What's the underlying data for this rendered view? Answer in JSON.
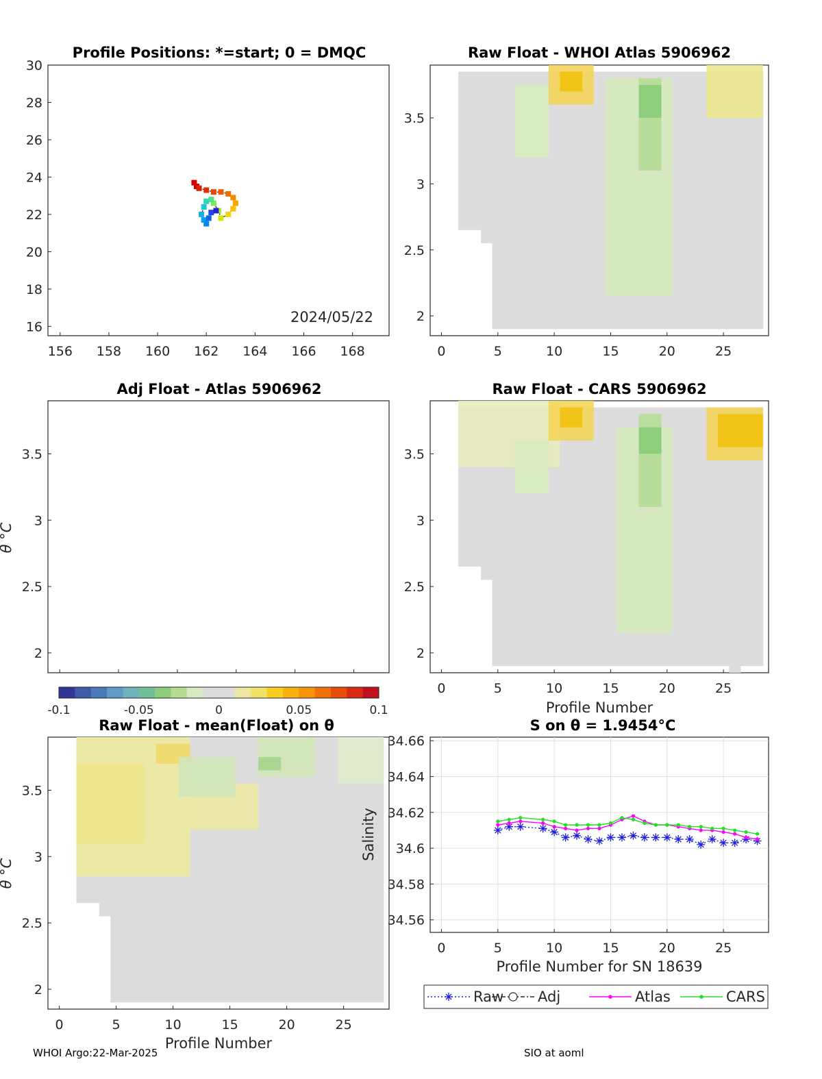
{
  "footer": {
    "left": "WHOI Argo:22-Mar-2025",
    "right": "SIO at aoml"
  },
  "colorbar": {
    "ticks": [
      "-0.1",
      "-0.05",
      "0",
      "0.05",
      "0.1"
    ],
    "colors": [
      "#313695",
      "#3f5aa6",
      "#4a7bb7",
      "#5f9bc4",
      "#6fb2bc",
      "#6fbf99",
      "#8ccc7a",
      "#b4dd8f",
      "#d6e9c1",
      "#dcdcdc",
      "#dcdcdc",
      "#ece8a3",
      "#f2e267",
      "#f6cf22",
      "#f7b20e",
      "#f59406",
      "#f07108",
      "#e64c0c",
      "#d62a12",
      "#c0101e"
    ]
  },
  "chart_data": [
    {
      "id": "positions",
      "type": "scatter",
      "title": "Profile Positions: *=start; 0 = DMQC",
      "xlim": [
        155.5,
        169.5
      ],
      "ylim": [
        15.5,
        30
      ],
      "xticks": [
        156,
        158,
        160,
        162,
        164,
        166,
        168
      ],
      "yticks": [
        16,
        18,
        20,
        22,
        24,
        26,
        28,
        30
      ],
      "annotation": "2024/05/22",
      "points": [
        {
          "lon": 161.5,
          "lat": 23.7,
          "color": "#d40000"
        },
        {
          "lon": 161.6,
          "lat": 23.5,
          "color": "#d40000"
        },
        {
          "lon": 161.7,
          "lat": 23.4,
          "color": "#dc1e00"
        },
        {
          "lon": 162.0,
          "lat": 23.3,
          "color": "#e03200"
        },
        {
          "lon": 162.3,
          "lat": 23.2,
          "color": "#e54800"
        },
        {
          "lon": 162.6,
          "lat": 23.2,
          "color": "#ea5a00"
        },
        {
          "lon": 162.9,
          "lat": 23.1,
          "color": "#ef7000"
        },
        {
          "lon": 163.1,
          "lat": 22.9,
          "color": "#f58a00"
        },
        {
          "lon": 163.2,
          "lat": 22.6,
          "color": "#f9a400"
        },
        {
          "lon": 163.1,
          "lat": 22.3,
          "color": "#fcc000"
        },
        {
          "lon": 162.9,
          "lat": 22.0,
          "color": "#f2d600"
        },
        {
          "lon": 162.6,
          "lat": 21.8,
          "color": "#d8e400"
        },
        {
          "lon": 162.5,
          "lat": 22.2,
          "color": "#b4ea1a"
        },
        {
          "lon": 162.3,
          "lat": 22.6,
          "color": "#7ee850"
        },
        {
          "lon": 162.2,
          "lat": 22.8,
          "color": "#50e08a"
        },
        {
          "lon": 162.0,
          "lat": 22.7,
          "color": "#2cd8b8"
        },
        {
          "lon": 161.9,
          "lat": 22.4,
          "color": "#1cc8d6"
        },
        {
          "lon": 161.8,
          "lat": 22.0,
          "color": "#10b2e6"
        },
        {
          "lon": 161.9,
          "lat": 21.7,
          "color": "#0a9ce8"
        },
        {
          "lon": 162.0,
          "lat": 21.5,
          "color": "#0a88ea"
        },
        {
          "lon": 162.1,
          "lat": 21.8,
          "color": "#1066ea"
        },
        {
          "lon": 162.2,
          "lat": 22.1,
          "color": "#2244e0"
        },
        {
          "lon": 162.4,
          "lat": 22.2,
          "color": "#2222d0"
        }
      ]
    },
    {
      "id": "atlas",
      "type": "heatmap",
      "title": "Raw Float - WHOI Atlas  5906962",
      "xlim": [
        -1,
        29
      ],
      "ylim": [
        1.85,
        3.9
      ],
      "xticks": [
        0,
        5,
        10,
        15,
        20,
        25
      ],
      "yticks": [
        2,
        2.5,
        3,
        3.5
      ],
      "columns": [
        {
          "p": 2,
          "bot": 2.65
        },
        {
          "p": 3,
          "bot": 2.65
        },
        {
          "p": 4,
          "bot": 2.55
        },
        {
          "p": 5,
          "bot": 1.9
        },
        {
          "p": 6,
          "bot": 1.9
        },
        {
          "p": 7,
          "bot": 1.9
        },
        {
          "p": 8,
          "bot": 1.9
        },
        {
          "p": 9,
          "bot": 1.9
        },
        {
          "p": 10,
          "bot": 1.9
        },
        {
          "p": 11,
          "bot": 1.9
        },
        {
          "p": 12,
          "bot": 1.9
        },
        {
          "p": 13,
          "bot": 1.9
        },
        {
          "p": 14,
          "bot": 1.9
        },
        {
          "p": 15,
          "bot": 1.9
        },
        {
          "p": 16,
          "bot": 1.9
        },
        {
          "p": 17,
          "bot": 1.9
        },
        {
          "p": 18,
          "bot": 1.9
        },
        {
          "p": 19,
          "bot": 1.9
        },
        {
          "p": 20,
          "bot": 1.9
        },
        {
          "p": 21,
          "bot": 1.9
        },
        {
          "p": 22,
          "bot": 1.9
        },
        {
          "p": 23,
          "bot": 1.9
        },
        {
          "p": 24,
          "bot": 1.9
        },
        {
          "p": 25,
          "bot": 1.9
        },
        {
          "p": 26,
          "bot": 1.9
        },
        {
          "p": 27,
          "bot": 1.9
        },
        {
          "p": 28,
          "bot": 1.9
        }
      ],
      "top": 3.85,
      "warm_patches": [
        {
          "p0": 10,
          "p1": 13,
          "th0": 3.6,
          "th1": 3.9,
          "color": "#f3d55a"
        },
        {
          "p0": 11,
          "p1": 12,
          "th0": 3.7,
          "th1": 3.85,
          "color": "#f1c20e"
        },
        {
          "p0": 24,
          "p1": 28,
          "th0": 3.5,
          "th1": 3.9,
          "color": "#ece68e"
        }
      ],
      "cool_patches": [
        {
          "p0": 15,
          "p1": 20,
          "th0": 2.15,
          "th1": 3.8,
          "color": "#d5e8bd"
        },
        {
          "p0": 18,
          "p1": 19,
          "th0": 3.1,
          "th1": 3.8,
          "color": "#b7dd9a"
        },
        {
          "p0": 18,
          "p1": 19,
          "th0": 3.5,
          "th1": 3.75,
          "color": "#8ccc7a"
        },
        {
          "p0": 7,
          "p1": 9,
          "th0": 3.2,
          "th1": 3.75,
          "color": "#d8ebbf"
        }
      ]
    },
    {
      "id": "adj_atlas",
      "type": "heatmap",
      "title": "Adj Float - Atlas  5906962",
      "ylabel": "θ °C",
      "xlim": [
        -1,
        28
      ],
      "ylim": [
        1.85,
        3.9
      ],
      "yticks": [
        2,
        2.5,
        3,
        3.5
      ],
      "columns": []
    },
    {
      "id": "cars",
      "type": "heatmap",
      "title": "Raw Float - CARS  5906962",
      "xlabel": "Profile Number",
      "xlim": [
        -1,
        29
      ],
      "ylim": [
        1.85,
        3.9
      ],
      "xticks": [
        0,
        5,
        10,
        15,
        20,
        25
      ],
      "yticks": [
        2,
        2.5,
        3,
        3.5
      ],
      "columns": [
        {
          "p": 2,
          "bot": 2.65
        },
        {
          "p": 3,
          "bot": 2.65
        },
        {
          "p": 4,
          "bot": 2.55
        },
        {
          "p": 5,
          "bot": 1.9
        },
        {
          "p": 6,
          "bot": 1.9
        },
        {
          "p": 7,
          "bot": 1.9
        },
        {
          "p": 8,
          "bot": 1.9
        },
        {
          "p": 9,
          "bot": 1.9
        },
        {
          "p": 10,
          "bot": 1.9
        },
        {
          "p": 11,
          "bot": 1.9
        },
        {
          "p": 12,
          "bot": 1.9
        },
        {
          "p": 13,
          "bot": 1.9
        },
        {
          "p": 14,
          "bot": 1.9
        },
        {
          "p": 15,
          "bot": 1.9
        },
        {
          "p": 16,
          "bot": 1.9
        },
        {
          "p": 17,
          "bot": 1.9
        },
        {
          "p": 18,
          "bot": 1.9
        },
        {
          "p": 19,
          "bot": 1.9
        },
        {
          "p": 20,
          "bot": 1.9
        },
        {
          "p": 21,
          "bot": 1.9
        },
        {
          "p": 22,
          "bot": 1.9
        },
        {
          "p": 23,
          "bot": 1.9
        },
        {
          "p": 24,
          "bot": 1.9
        },
        {
          "p": 25,
          "bot": 1.9
        },
        {
          "p": 26,
          "bot": 1.85
        },
        {
          "p": 27,
          "bot": 1.9
        },
        {
          "p": 28,
          "bot": 1.9
        }
      ],
      "top": 3.85,
      "warm_patches": [
        {
          "p0": 2,
          "p1": 10,
          "th0": 3.4,
          "th1": 3.9,
          "color": "#e9ecbe"
        },
        {
          "p0": 10,
          "p1": 13,
          "th0": 3.6,
          "th1": 3.9,
          "color": "#f3d55a"
        },
        {
          "p0": 11,
          "p1": 12,
          "th0": 3.7,
          "th1": 3.85,
          "color": "#f1c20e"
        },
        {
          "p0": 24,
          "p1": 28,
          "th0": 3.45,
          "th1": 3.85,
          "color": "#f3d55a"
        },
        {
          "p0": 25,
          "p1": 28,
          "th0": 3.55,
          "th1": 3.8,
          "color": "#f1c20e"
        }
      ],
      "cool_patches": [
        {
          "p0": 16,
          "p1": 20,
          "th0": 2.15,
          "th1": 3.7,
          "color": "#d5e8bd"
        },
        {
          "p0": 18,
          "p1": 19,
          "th0": 3.1,
          "th1": 3.8,
          "color": "#b7dd9a"
        },
        {
          "p0": 18,
          "p1": 19,
          "th0": 3.5,
          "th1": 3.7,
          "color": "#8ccc7a"
        },
        {
          "p0": 7,
          "p1": 9,
          "th0": 3.2,
          "th1": 3.6,
          "color": "#d8ebbf"
        }
      ]
    },
    {
      "id": "mean",
      "type": "heatmap",
      "title": "Raw Float - mean(Float) on θ",
      "ylabel": "θ °C",
      "xlabel": "Profile Number",
      "xlim": [
        -1,
        29
      ],
      "ylim": [
        1.85,
        3.9
      ],
      "xticks": [
        0,
        5,
        10,
        15,
        20,
        25
      ],
      "yticks": [
        2,
        2.5,
        3,
        3.5
      ],
      "columns": [
        {
          "p": 2,
          "bot": 2.65
        },
        {
          "p": 3,
          "bot": 2.65
        },
        {
          "p": 4,
          "bot": 2.55
        },
        {
          "p": 5,
          "bot": 1.9
        },
        {
          "p": 6,
          "bot": 1.9
        },
        {
          "p": 7,
          "bot": 1.9
        },
        {
          "p": 8,
          "bot": 1.9
        },
        {
          "p": 9,
          "bot": 1.9
        },
        {
          "p": 10,
          "bot": 1.9
        },
        {
          "p": 11,
          "bot": 1.9
        },
        {
          "p": 12,
          "bot": 1.9
        },
        {
          "p": 13,
          "bot": 1.9
        },
        {
          "p": 14,
          "bot": 1.9
        },
        {
          "p": 15,
          "bot": 1.9
        },
        {
          "p": 16,
          "bot": 1.9
        },
        {
          "p": 17,
          "bot": 1.9
        },
        {
          "p": 18,
          "bot": 1.9
        },
        {
          "p": 19,
          "bot": 1.9
        },
        {
          "p": 20,
          "bot": 1.9
        },
        {
          "p": 21,
          "bot": 1.9
        },
        {
          "p": 22,
          "bot": 1.9
        },
        {
          "p": 23,
          "bot": 1.9
        },
        {
          "p": 24,
          "bot": 1.9
        },
        {
          "p": 25,
          "bot": 1.9
        },
        {
          "p": 26,
          "bot": 1.9
        },
        {
          "p": 27,
          "bot": 1.9
        },
        {
          "p": 28,
          "bot": 1.9
        }
      ],
      "top": 3.9,
      "warm_patches": [
        {
          "p0": 2,
          "p1": 11,
          "th0": 2.85,
          "th1": 3.9,
          "color": "#ecea9e"
        },
        {
          "p0": 2,
          "p1": 7,
          "th0": 3.1,
          "th1": 3.7,
          "color": "#eee68a"
        },
        {
          "p0": 9,
          "p1": 11,
          "th0": 3.7,
          "th1": 3.85,
          "color": "#f0d86a"
        },
        {
          "p0": 12,
          "p1": 17,
          "th0": 3.2,
          "th1": 3.55,
          "color": "#ece8a3"
        }
      ],
      "cool_patches": [
        {
          "p0": 11,
          "p1": 15,
          "th0": 3.45,
          "th1": 3.75,
          "color": "#d2e6b8"
        },
        {
          "p0": 18,
          "p1": 22,
          "th0": 3.6,
          "th1": 3.9,
          "color": "#d2e6b8"
        },
        {
          "p0": 18,
          "p1": 19,
          "th0": 3.65,
          "th1": 3.75,
          "color": "#a8d58f"
        },
        {
          "p0": 25,
          "p1": 28,
          "th0": 3.55,
          "th1": 3.9,
          "color": "#dfeccb"
        }
      ]
    },
    {
      "id": "salinity",
      "type": "line",
      "title": "S on θ = 1.9454°C",
      "xlabel": "Profile Number for SN 18639",
      "ylabel": "Salinity",
      "xlim": [
        -1,
        29
      ],
      "ylim": [
        34.553,
        34.662
      ],
      "xticks": [
        0,
        5,
        10,
        15,
        20,
        25
      ],
      "yticks": [
        34.56,
        34.58,
        34.6,
        34.62,
        34.64,
        34.66
      ],
      "ytick_labels": [
        "34.56",
        "34.58",
        "34.6",
        "34.62",
        "34.64",
        "34.66"
      ],
      "grid": true,
      "legend": [
        "Raw",
        "Adj",
        "Atlas",
        "CARS"
      ],
      "x": [
        5,
        6,
        7,
        9,
        10,
        11,
        12,
        13,
        14,
        15,
        16,
        17,
        18,
        19,
        20,
        21,
        22,
        23,
        24,
        25,
        26,
        27,
        28
      ],
      "series": [
        {
          "name": "Raw",
          "color": "#1f1fe0",
          "marker": "asterisk",
          "values": [
            34.61,
            34.612,
            34.612,
            34.611,
            34.609,
            34.606,
            34.607,
            34.605,
            34.604,
            34.606,
            34.606,
            34.607,
            34.606,
            34.606,
            34.606,
            34.605,
            34.605,
            34.602,
            34.605,
            34.603,
            34.603,
            34.605,
            34.604
          ]
        },
        {
          "name": "Atlas",
          "color": "#ff00ff",
          "marker": "dot",
          "values": [
            34.613,
            34.614,
            34.615,
            34.614,
            34.612,
            34.611,
            34.61,
            34.611,
            34.611,
            34.613,
            34.616,
            34.618,
            34.615,
            34.613,
            34.613,
            34.612,
            34.611,
            34.61,
            34.61,
            34.609,
            34.608,
            34.606,
            34.605
          ]
        },
        {
          "name": "CARS",
          "color": "#22e022",
          "marker": "dot",
          "values": [
            34.615,
            34.616,
            34.617,
            34.616,
            34.615,
            34.613,
            34.613,
            34.613,
            34.613,
            34.614,
            34.617,
            34.616,
            34.614,
            34.613,
            34.613,
            34.613,
            34.612,
            34.612,
            34.611,
            34.611,
            34.61,
            34.609,
            34.608
          ]
        }
      ]
    }
  ]
}
